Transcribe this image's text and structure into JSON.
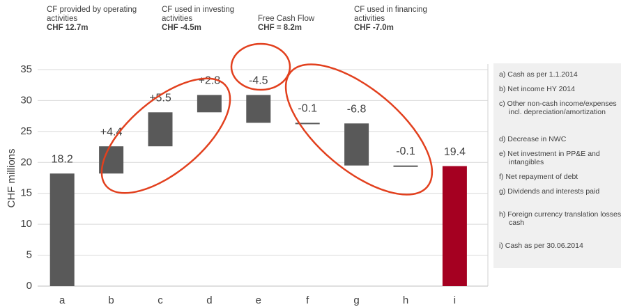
{
  "chart_data": {
    "type": "waterfall",
    "y_label": "CHF millions",
    "categories": [
      "a",
      "b",
      "c",
      "d",
      "e",
      "f",
      "g",
      "h",
      "i"
    ],
    "values": [
      18.2,
      4.4,
      5.5,
      2.8,
      -4.5,
      -0.1,
      -6.8,
      -0.1,
      19.4
    ],
    "value_labels": [
      "18.2",
      "+4.4",
      "+5.5",
      "+2.8",
      "-4.5",
      "-0.1",
      "-6.8",
      "-0.1",
      "19.4"
    ],
    "measure": [
      "absolute",
      "relative",
      "relative",
      "relative",
      "relative",
      "relative",
      "relative",
      "relative",
      "total"
    ],
    "color": "#595959",
    "total_color": "#a50021",
    "ylim": [
      0,
      35
    ],
    "yticks": [
      0,
      5,
      10,
      15,
      20,
      25,
      30,
      35
    ],
    "grid": true,
    "annotations": [
      {
        "text": "CF provided by operating activities",
        "value": "CHF 12.7m"
      },
      {
        "text": "CF used in investing activities",
        "value": "CHF -4.5m"
      },
      {
        "text": "Free Cash Flow",
        "value": "CHF = 8.2m"
      },
      {
        "text": "CF used in financing activities",
        "value": "CHF -7.0m"
      }
    ],
    "notes": [
      "a) Cash as per 1.1.2014",
      "b) Net income HY 2014",
      "c) Other non-cash income/expenses incl. depreciation/amortization",
      "d) Decrease in NWC",
      "e) Net investment in PP&E and intangibles",
      "f) Net repayment of debt",
      "g) Dividends and interests paid",
      "h) Foreign currency translation losses on cash",
      "i) Cash as per 30.06.2014"
    ]
  }
}
